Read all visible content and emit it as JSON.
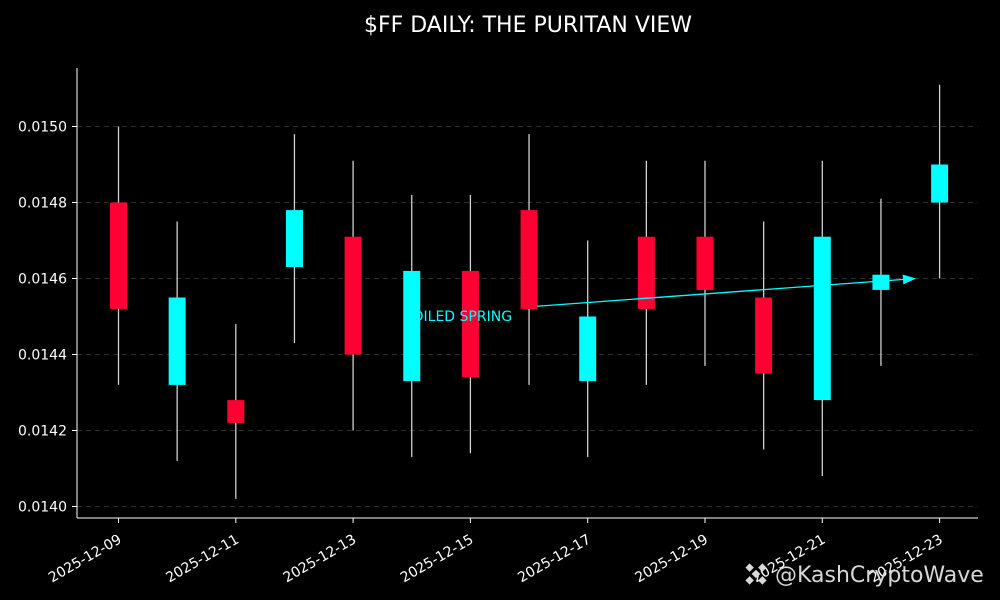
{
  "chart_data": {
    "type": "candlestick",
    "title": "$FF DAILY: THE PURITAN VIEW",
    "xlabel": "",
    "ylabel": "",
    "ylim": [
      0.01397,
      0.01515
    ],
    "yticks": [
      "0.0140",
      "0.0142",
      "0.0144",
      "0.0146",
      "0.0148",
      "0.0150"
    ],
    "xtick_labels": [
      "2025-12-09",
      "2025-12-11",
      "2025-12-13",
      "2025-12-15",
      "2025-12-17",
      "2025-12-19",
      "2025-12-21",
      "2025-12-23"
    ],
    "grid": "horizontal dashed",
    "candles": [
      {
        "date": "2025-12-09",
        "open": 0.0148,
        "high": 0.015,
        "low": 0.01432,
        "close": 0.01452
      },
      {
        "date": "2025-12-10",
        "open": 0.01432,
        "high": 0.01475,
        "low": 0.01412,
        "close": 0.01455
      },
      {
        "date": "2025-12-11",
        "open": 0.01428,
        "high": 0.01448,
        "low": 0.01402,
        "close": 0.01422
      },
      {
        "date": "2025-12-12",
        "open": 0.01463,
        "high": 0.01498,
        "low": 0.01443,
        "close": 0.01478
      },
      {
        "date": "2025-12-13",
        "open": 0.01471,
        "high": 0.01491,
        "low": 0.0142,
        "close": 0.0144
      },
      {
        "date": "2025-12-14",
        "open": 0.01433,
        "high": 0.01482,
        "low": 0.01413,
        "close": 0.01462
      },
      {
        "date": "2025-12-15",
        "open": 0.01462,
        "high": 0.01482,
        "low": 0.01414,
        "close": 0.01434
      },
      {
        "date": "2025-12-16",
        "open": 0.01478,
        "high": 0.01498,
        "low": 0.01432,
        "close": 0.01452
      },
      {
        "date": "2025-12-17",
        "open": 0.01433,
        "high": 0.0147,
        "low": 0.01413,
        "close": 0.0145
      },
      {
        "date": "2025-12-18",
        "open": 0.01471,
        "high": 0.01491,
        "low": 0.01432,
        "close": 0.01452
      },
      {
        "date": "2025-12-19",
        "open": 0.01471,
        "high": 0.01491,
        "low": 0.01437,
        "close": 0.01457
      },
      {
        "date": "2025-12-20",
        "open": 0.01455,
        "high": 0.01475,
        "low": 0.01415,
        "close": 0.01435
      },
      {
        "date": "2025-12-21",
        "open": 0.01428,
        "high": 0.01491,
        "low": 0.01408,
        "close": 0.01471
      },
      {
        "date": "2025-12-22",
        "open": 0.01457,
        "high": 0.01481,
        "low": 0.01437,
        "close": 0.01461
      },
      {
        "date": "2025-12-23",
        "open": 0.0148,
        "high": 0.01511,
        "low": 0.0146,
        "close": 0.0149
      }
    ],
    "annotation": {
      "text": "COILED SPRING",
      "from": {
        "date": "2025-12-16",
        "value": 0.014527
      },
      "to": {
        "date": "2025-12-22",
        "value": 0.0146
      }
    },
    "colors": {
      "up": "#00ffff",
      "down": "#ff0033",
      "wick": "#d0d0d0",
      "background": "#000000",
      "annotation": "#00ffff",
      "grid": "#2e2e2e"
    }
  },
  "watermark": {
    "text": "@KashCryptoWave",
    "icon": "binance-logo-icon"
  }
}
